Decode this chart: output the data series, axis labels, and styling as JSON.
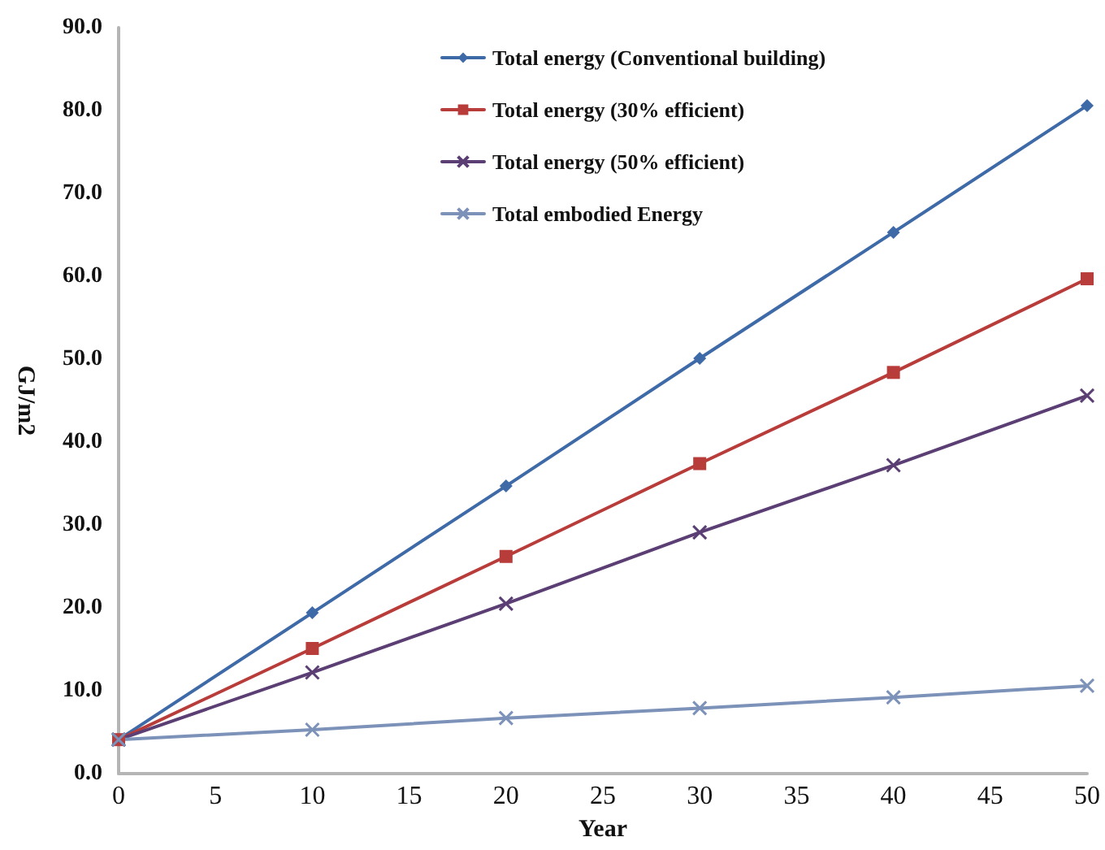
{
  "chart_data": {
    "type": "line",
    "xlabel": "Year",
    "ylabel": "GJ/m2",
    "x": [
      0,
      10,
      20,
      30,
      40,
      50
    ],
    "series": [
      {
        "name": "Total energy (Conventional building)",
        "color": "#3f6aa8",
        "marker": "diamond",
        "values": [
          4.1,
          19.4,
          34.7,
          50.1,
          65.3,
          80.6
        ]
      },
      {
        "name": "Total energy (30% efficient)",
        "color": "#b83c3a",
        "marker": "square",
        "values": [
          4.1,
          15.1,
          26.2,
          37.4,
          48.4,
          59.7
        ]
      },
      {
        "name": "Total energy (50% efficient)",
        "color": "#5b3e73",
        "marker": "cross",
        "values": [
          4.1,
          12.2,
          20.5,
          29.1,
          37.2,
          45.6
        ]
      },
      {
        "name": "Total embodied Energy",
        "color": "#7d92b8",
        "marker": "cross",
        "values": [
          4.1,
          5.3,
          6.7,
          7.9,
          9.2,
          10.6
        ]
      }
    ],
    "xlim": [
      0,
      50
    ],
    "xticks": [
      0,
      5,
      10,
      15,
      20,
      25,
      30,
      35,
      40,
      45,
      50
    ],
    "ylim": [
      0,
      90
    ],
    "yticks": [
      {
        "value": 0,
        "label": "0.0"
      },
      {
        "value": 10,
        "label": "10.0"
      },
      {
        "value": 20,
        "label": "20.0"
      },
      {
        "value": 30,
        "label": "30.0"
      },
      {
        "value": 40,
        "label": "40.0"
      },
      {
        "value": 50,
        "label": "50.0"
      },
      {
        "value": 60,
        "label": "60.0"
      },
      {
        "value": 70,
        "label": "70.0"
      },
      {
        "value": 80,
        "label": "80.0"
      },
      {
        "value": 90,
        "label": "90.0"
      }
    ],
    "grid": false,
    "legend": "top right",
    "line_style": "solid"
  }
}
